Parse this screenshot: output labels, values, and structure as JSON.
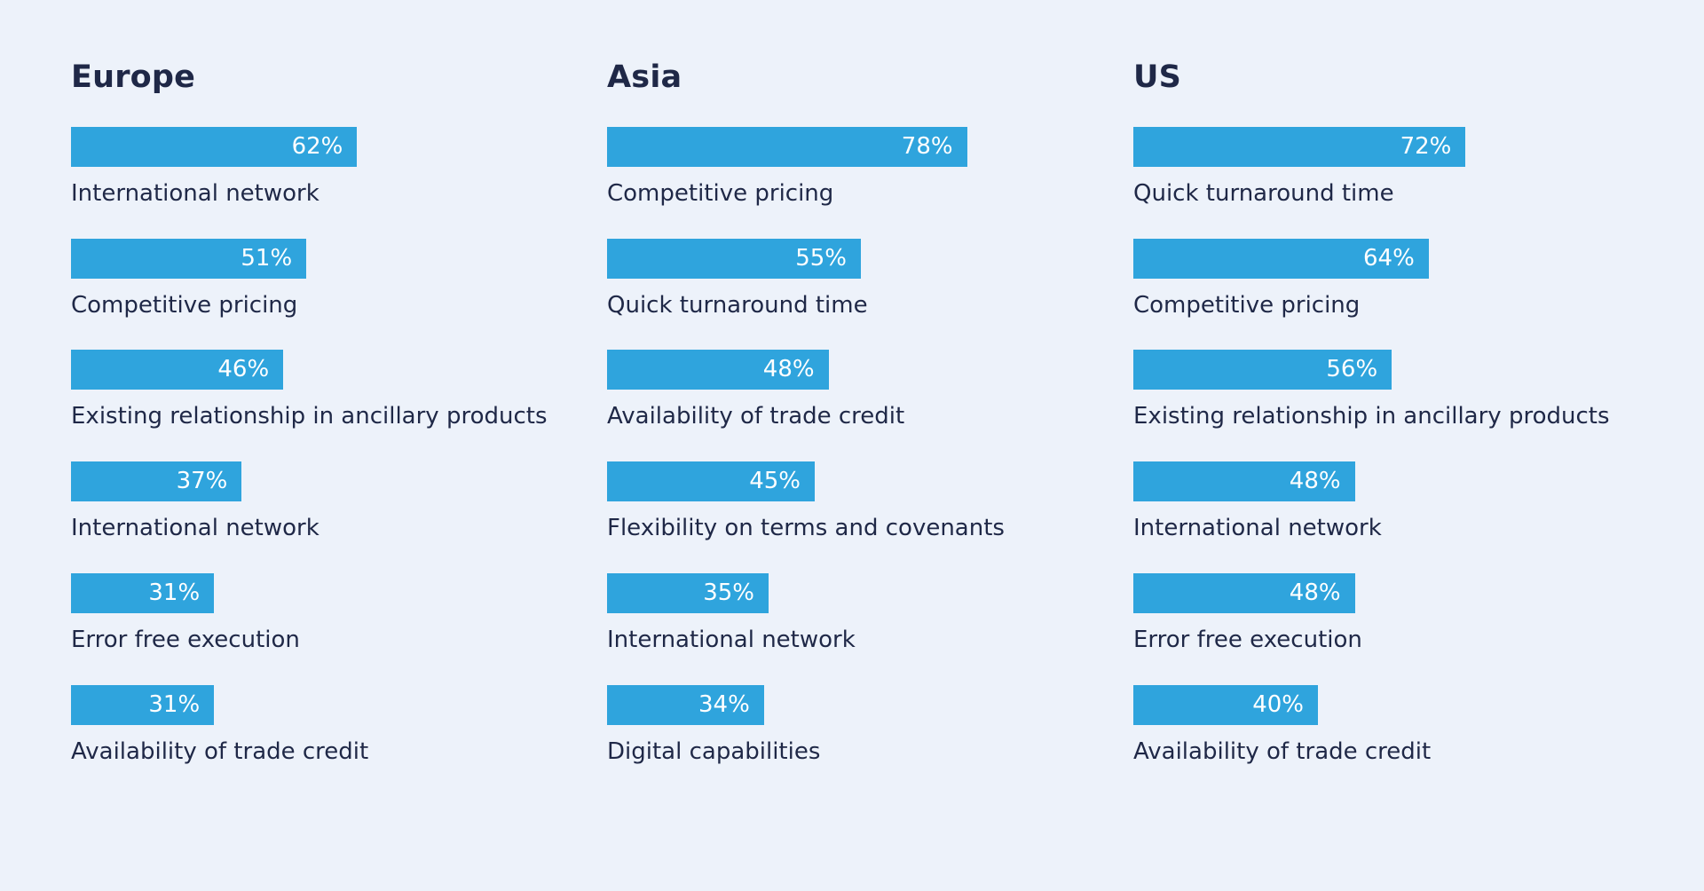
{
  "chart_data": [
    {
      "type": "bar",
      "title": "Europe",
      "categories": [
        "International network",
        "Competitive pricing",
        "Existing relationship in ancillary products",
        "International network",
        "Error free execution",
        "Availability of trade credit"
      ],
      "values": [
        62,
        51,
        46,
        37,
        31,
        31
      ],
      "value_labels": [
        "62%",
        "51%",
        "46%",
        "37%",
        "31%",
        "31%"
      ],
      "xlim": [
        0,
        100
      ]
    },
    {
      "type": "bar",
      "title": "Asia",
      "categories": [
        "Competitive pricing",
        "Quick turnaround time",
        "Availability of trade credit",
        "Flexibility on terms and covenants",
        "International network",
        "Digital capabilities"
      ],
      "values": [
        78,
        55,
        48,
        45,
        35,
        34
      ],
      "value_labels": [
        "78%",
        "55%",
        "48%",
        "45%",
        "35%",
        "34%"
      ],
      "xlim": [
        0,
        100
      ]
    },
    {
      "type": "bar",
      "title": "US",
      "categories": [
        "Quick turnaround time",
        "Competitive pricing",
        "Existing relationship in ancillary products",
        "International network",
        "Error free execution",
        "Availability of trade credit"
      ],
      "values": [
        72,
        64,
        56,
        48,
        48,
        40
      ],
      "value_labels": [
        "72%",
        "64%",
        "56%",
        "48%",
        "48%",
        "40%"
      ],
      "xlim": [
        0,
        100
      ]
    }
  ],
  "colors": {
    "bar": "#2fa4dd",
    "background": "#edf2fa",
    "text": "#1f2847",
    "bar_text": "#ffffff"
  }
}
